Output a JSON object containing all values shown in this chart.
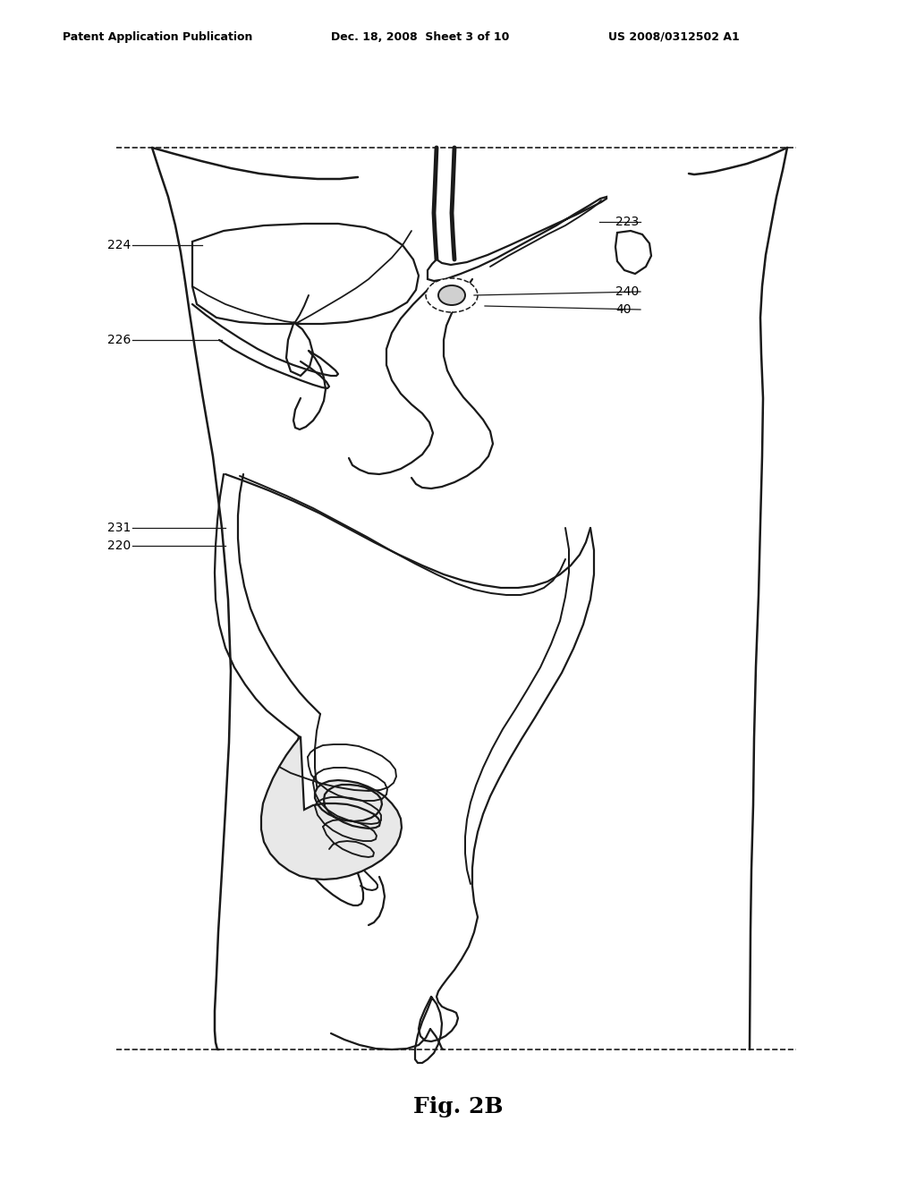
{
  "background": "#ffffff",
  "lc": "#1a1a1a",
  "header_left": "Patent Application Publication",
  "header_mid": "Dec. 18, 2008  Sheet 3 of 10",
  "header_right": "US 2008/0312502 A1",
  "fig_label": "Fig. 2B",
  "lw": 1.6
}
